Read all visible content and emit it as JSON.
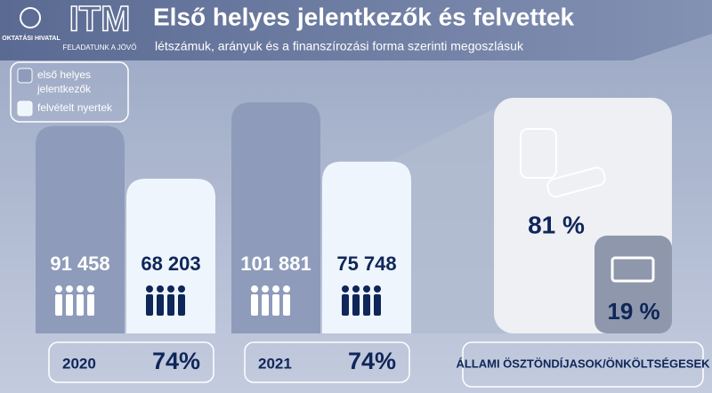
{
  "header": {
    "org": "OKTATÁSI HIVATAL",
    "logo": "ITM",
    "motto": "FELADATUNK A JÖVŐ",
    "title": "Első helyes jelentkezők és felvettek",
    "subtitle": "létszámuk, arányuk és a finanszírozási forma szerinti megoszlásuk"
  },
  "chart_data": {
    "type": "bar",
    "categories": [
      "2020",
      "2021"
    ],
    "series": [
      {
        "name": "első helyes jelentkezők",
        "color": "#8e9bba",
        "values": [
          91458,
          101881
        ],
        "value_labels": [
          "91 458",
          "101 881"
        ]
      },
      {
        "name": "felvételt nyertek",
        "color": "#eef5fc",
        "values": [
          68203,
          75748
        ],
        "value_labels": [
          "68 203",
          "75 748"
        ]
      }
    ],
    "ratios": [
      74,
      74
    ],
    "ratio_labels": [
      "74%",
      "74%"
    ]
  },
  "funding": {
    "label": "ÁLLAMI ÖSZTÖNDÍJASOK/ÖNKÖLTSÉGESEK",
    "values": [
      81,
      19
    ],
    "value_labels": [
      "81 %",
      "19 %"
    ]
  }
}
